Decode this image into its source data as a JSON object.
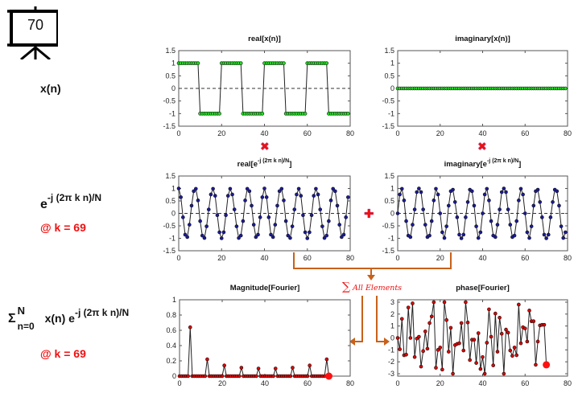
{
  "badge": {
    "icon": "presentation-board-icon",
    "number": "70"
  },
  "left_labels": {
    "xn": "x(n)",
    "exp_base": "e",
    "exp_power": "-j (2π k n)/N",
    "k_label_1": "@ k = 69",
    "sum_sigma": "Σ",
    "sum_upper": "N",
    "sum_lower": "n=0",
    "sum_body": "x(n) e",
    "sum_power": "-j (2π k n)/N",
    "k_label_2": "@ k = 69"
  },
  "operators": {
    "multiply_icon": "✖",
    "plus_icon": "✚",
    "sum_annotation_symbol": "∑",
    "sum_annotation_text": "All Elements"
  },
  "colors": {
    "green": "#22dd22",
    "blue": "#1a1a9a",
    "red": "#dd0000",
    "arrow": "#c8611a",
    "accent_red": "#ee1111"
  },
  "chart_data": [
    {
      "id": "real_x",
      "type": "line",
      "title": "real[x(n)]",
      "xlim": [
        0,
        80
      ],
      "ylim": [
        -1.5,
        1.5
      ],
      "xticks": [
        "0",
        "20",
        "40",
        "60",
        "80"
      ],
      "yticks": [
        "1.5",
        "1",
        "0.5",
        "0",
        "-0.5",
        "-1",
        "-1.5"
      ],
      "marker_color": "#22dd22",
      "zero_line": true,
      "x_start": 0,
      "values": [
        1,
        1,
        1,
        1,
        1,
        1,
        1,
        1,
        1,
        1,
        -1,
        -1,
        -1,
        -1,
        -1,
        -1,
        -1,
        -1,
        -1,
        -1,
        1,
        1,
        1,
        1,
        1,
        1,
        1,
        1,
        1,
        1,
        -1,
        -1,
        -1,
        -1,
        -1,
        -1,
        -1,
        -1,
        -1,
        -1,
        1,
        1,
        1,
        1,
        1,
        1,
        1,
        1,
        1,
        1,
        -1,
        -1,
        -1,
        -1,
        -1,
        -1,
        -1,
        -1,
        -1,
        -1,
        1,
        1,
        1,
        1,
        1,
        1,
        1,
        1,
        1,
        1,
        -1,
        -1,
        -1,
        -1,
        -1,
        -1,
        -1,
        -1,
        -1,
        -1
      ]
    },
    {
      "id": "imag_x",
      "type": "line",
      "title": "imaginary[x(n)]",
      "xlim": [
        0,
        80
      ],
      "ylim": [
        -1.5,
        1.5
      ],
      "xticks": [
        "0",
        "20",
        "40",
        "60",
        "80"
      ],
      "yticks": [
        "1.5",
        "1",
        "0.5",
        "0",
        "-0.5",
        "-1",
        "-1.5"
      ],
      "marker_color": "#22dd22",
      "zero_line": false,
      "x_start": 0,
      "values": [
        0,
        0,
        0,
        0,
        0,
        0,
        0,
        0,
        0,
        0,
        0,
        0,
        0,
        0,
        0,
        0,
        0,
        0,
        0,
        0,
        0,
        0,
        0,
        0,
        0,
        0,
        0,
        0,
        0,
        0,
        0,
        0,
        0,
        0,
        0,
        0,
        0,
        0,
        0,
        0,
        0,
        0,
        0,
        0,
        0,
        0,
        0,
        0,
        0,
        0,
        0,
        0,
        0,
        0,
        0,
        0,
        0,
        0,
        0,
        0,
        0,
        0,
        0,
        0,
        0,
        0,
        0,
        0,
        0,
        0,
        0,
        0,
        0,
        0,
        0,
        0,
        0,
        0,
        0,
        0
      ]
    },
    {
      "id": "real_exp",
      "type": "line",
      "title_base": "real[e",
      "title_power": "-j (2π k n)/N",
      "title_end": "]",
      "xlim": [
        0,
        80
      ],
      "ylim": [
        -1.5,
        1.5
      ],
      "xticks": [
        "0",
        "20",
        "40",
        "60",
        "80"
      ],
      "yticks": [
        "1.5",
        "1",
        "0.5",
        "0",
        "-0.5",
        "-1",
        "-1.5"
      ],
      "marker_color": "#1a1a9a",
      "zero_line": true,
      "x_start": 0,
      "values": [
        1,
        0.649,
        -0.156,
        -0.853,
        -0.951,
        -0.454,
        0.309,
        0.891,
        0.988,
        0.522,
        -0.309,
        -0.891,
        -0.988,
        -0.522,
        0.156,
        0.76,
        0.987,
        0.707,
        -0.072,
        -0.76,
        -1,
        -0.76,
        -0.072,
        0.707,
        0.987,
        0.76,
        0.156,
        -0.522,
        -0.988,
        -0.891,
        -0.309,
        0.522,
        0.988,
        0.891,
        0.309,
        -0.454,
        -0.951,
        -0.853,
        -0.156,
        0.649,
        1,
        0.649,
        -0.156,
        -0.853,
        -0.951,
        -0.454,
        0.309,
        0.891,
        0.988,
        0.522,
        -0.309,
        -0.891,
        -0.988,
        -0.522,
        0.156,
        0.76,
        0.987,
        0.707,
        -0.072,
        -0.76,
        -1,
        -0.76,
        -0.072,
        0.707,
        0.987,
        0.76,
        0.156,
        -0.522,
        -0.988,
        -0.891,
        -0.309,
        0.522,
        0.988,
        0.891,
        0.309,
        -0.454,
        -0.951,
        -0.853,
        -0.156,
        0.649
      ]
    },
    {
      "id": "imag_exp",
      "type": "line",
      "title_base": "imaginary[e",
      "title_power": "-j (2π k n)/N",
      "title_end": "]",
      "xlim": [
        0,
        80
      ],
      "ylim": [
        -1.5,
        1.5
      ],
      "xticks": [
        "0",
        "20",
        "40",
        "60",
        "80"
      ],
      "yticks": [
        "1.5",
        "1",
        "0.5",
        "0",
        "-0.5",
        "-1",
        "-1.5"
      ],
      "marker_color": "#1a1a9a",
      "zero_line": true,
      "x_start": 0,
      "values": [
        0,
        0.76,
        0.988,
        0.522,
        -0.309,
        -0.891,
        -0.951,
        -0.454,
        0.156,
        0.853,
        1,
        0.853,
        0.156,
        -0.454,
        -0.951,
        -0.891,
        -0.309,
        0.522,
        0.988,
        0.76,
        0,
        -0.76,
        -0.988,
        -0.522,
        0.309,
        0.891,
        0.951,
        0.454,
        -0.156,
        -0.853,
        -1,
        -0.853,
        -0.156,
        0.454,
        0.951,
        0.891,
        0.309,
        -0.522,
        -0.988,
        -0.76,
        0,
        0.76,
        0.988,
        0.522,
        -0.309,
        -0.891,
        -0.951,
        -0.454,
        0.156,
        0.853,
        1,
        0.853,
        0.156,
        -0.454,
        -0.951,
        -0.891,
        -0.309,
        0.522,
        0.988,
        0.76,
        0,
        -0.76,
        -0.988,
        -0.522,
        0.309,
        0.891,
        0.951,
        0.454,
        -0.156,
        -0.853,
        -1,
        -0.853,
        -0.156,
        0.454,
        0.951,
        0.891,
        0.309,
        -0.522,
        -0.988,
        -0.76
      ]
    },
    {
      "id": "magnitude",
      "type": "line",
      "title": "Magnitude[Fourier]",
      "xlim": [
        0,
        80
      ],
      "ylim": [
        0,
        1
      ],
      "xticks": [
        "0",
        "20",
        "40",
        "60",
        "80"
      ],
      "yticks": [
        "1",
        "0.8",
        "0.6",
        "0.4",
        "0.2",
        "0"
      ],
      "marker_color": "#dd0000",
      "zero_line": false,
      "x_start": 0,
      "highlight": {
        "k": 70,
        "value": 0
      },
      "values": [
        0,
        0,
        0,
        0,
        0,
        0.64,
        0,
        0,
        0,
        0,
        0,
        0,
        0,
        0.22,
        0,
        0,
        0,
        0,
        0,
        0,
        0,
        0.14,
        0,
        0,
        0,
        0,
        0,
        0,
        0,
        0.11,
        0,
        0,
        0,
        0,
        0,
        0,
        0,
        0.1,
        0,
        0,
        0,
        0,
        0,
        0,
        0,
        0.1,
        0,
        0,
        0,
        0,
        0,
        0,
        0,
        0.11,
        0,
        0,
        0,
        0,
        0,
        0,
        0,
        0.14,
        0,
        0,
        0,
        0,
        0,
        0,
        0,
        0.22
      ]
    },
    {
      "id": "phase",
      "type": "line",
      "title": "phase[Fourier]",
      "xlim": [
        0,
        80
      ],
      "ylim": [
        -3.2,
        3.2
      ],
      "xticks": [
        "0",
        "20",
        "40",
        "60",
        "80"
      ],
      "yticks": [
        "3",
        "2",
        "1",
        "0",
        "-1",
        "-2",
        "-3"
      ],
      "ytick_values": [
        3,
        2,
        1,
        0,
        -1,
        -2,
        -3
      ],
      "marker_color": "#dd0000",
      "zero_line": false,
      "x_start": 0,
      "highlight": {
        "k": 70,
        "value": -2.25
      },
      "values": [
        0,
        -0.95,
        1.6,
        -1.45,
        -1.4,
        2.55,
        0,
        2.9,
        -1.6,
        -0.05,
        0.1,
        -2.4,
        -1.1,
        0.55,
        -0.9,
        1.25,
        1.8,
        3.0,
        -2.5,
        -1.0,
        -0.8,
        -2.65,
        3.0,
        1.5,
        -1.15,
        0.85,
        -3.0,
        -0.6,
        -0.5,
        -0.45,
        1.25,
        -1.05,
        3.0,
        1.3,
        -1.85,
        -0.15,
        -0.15,
        -2.1,
        0.4,
        -2.6,
        -1.6,
        -3.0,
        -0.4,
        2.4,
        0.1,
        -2.3,
        2.05,
        -1.15,
        1.7,
        0.35,
        -3.0,
        0.7,
        0.45,
        -1.05,
        -1.5,
        -0.8,
        -1.45,
        2.8,
        -0.45,
        0.9,
        0.8,
        -0.3,
        2.3,
        1.4,
        1.4,
        -2.25,
        -0.3,
        1.05,
        1.1,
        1.1
      ]
    }
  ]
}
